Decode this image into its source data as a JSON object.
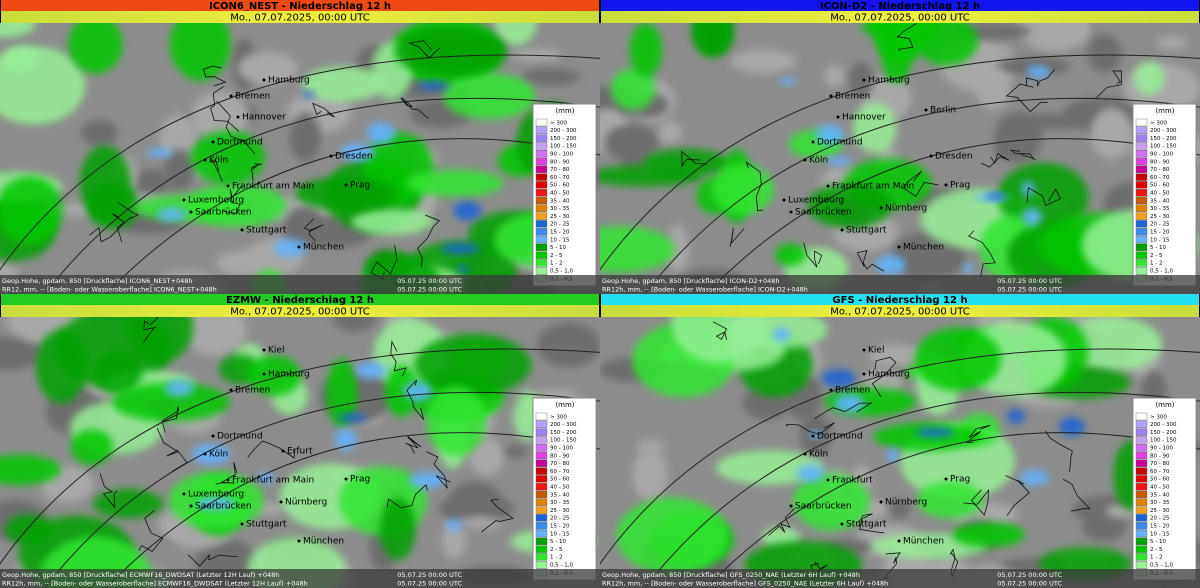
{
  "panels": [
    {
      "title": "ICON6_NEST - Niederschlag 12 h",
      "color": "#f04a14",
      "date": "Mo., 07.07.2025, 00:00 UTC",
      "cities": [
        "Hamburg",
        "Bremen",
        "Hannover",
        "Dortmund",
        "Köln",
        "Dresden",
        "Frankfurt am Main",
        "Prag",
        "Luxembourg",
        "Saarbrücken",
        "Stuttgart",
        "München"
      ],
      "footer": [
        [
          "Geop.Hohe, gpdam, 850 [Druckflache] ICON6_NEST+048h",
          "05.07.25 00:00 UTC"
        ],
        [
          "RR12, mm, -- [Boden- oder Wasseroberflache] ICON6_NEST+048h",
          "05.07.25 00:00 UTC"
        ]
      ]
    },
    {
      "title": "ICON-D2 - Niederschlag 12 h",
      "color": "#1414f0",
      "date": "Mo., 07.07.2025, 00:00 UTC",
      "cities": [
        "Hamburg",
        "Bremen",
        "Hannover",
        "Berlin",
        "Dortmund",
        "Köln",
        "Dresden",
        "Frankfurt am Main",
        "Prag",
        "Luxembourg",
        "Saarbrücken",
        "Nürnberg",
        "Stuttgart",
        "München"
      ],
      "footer": [
        [
          "Geop.Hohe, gpdam, 850 [Druckflache] ICON-D2+048h",
          "05.07.25 00:00 UTC"
        ],
        [
          "RR12h, mm, -- [Boden- oder Wasseroberflache] ICON-D2+048h",
          "05.07.25 00:00 UTC"
        ]
      ]
    },
    {
      "title": "EZMW - Niederschlag 12 h",
      "color": "#22cc22",
      "date": "Mo., 07.07.2025, 00:00 UTC",
      "cities": [
        "Kiel",
        "Hamburg",
        "Bremen",
        "Dortmund",
        "Köln",
        "Erfurt",
        "Frankfurt am Main",
        "Prag",
        "Luxembourg",
        "Saarbrücken",
        "Nürnberg",
        "Stuttgart",
        "München"
      ],
      "footer": [
        [
          "Geop.Hohe, gpdam, 850 [Druckflache] ECMWF16_DWDSAT (Letzter 12H Lauf) +048h",
          "05.07.25 00:00 UTC"
        ],
        [
          "RR12h, mm, -- [Boden- oder Wasseroberflache] ECMWF16_DWDSAT (Letzter 12H Lauf) +048h",
          "05.07.25 00:00 UTC"
        ]
      ]
    },
    {
      "title": "GFS - Niederschlag 12 h",
      "color": "#22e0f0",
      "date": "Mo., 07.07.2025, 00:00 UTC",
      "cities": [
        "Kiel",
        "Hamburg",
        "Bremen",
        "Dortmund",
        "Köln",
        "Frankfurt",
        "Prag",
        "Nürnberg",
        "Saarbrücken",
        "Stuttgart",
        "München"
      ],
      "footer": [
        [
          "Geop.Hohe, gpdam, 850 [Druckflache] GFS_0250_NAE (Letzter 6H Lauf) +048h",
          "05.07.25 00:00 UTC"
        ],
        [
          "RR12h, mm, -- [Boden- oder Wasseroberflache] GFS_0250_NAE (Letzter 6H Lauf) +048h",
          "05.07.25 00:00 UTC"
        ]
      ]
    }
  ],
  "legend": {
    "unit": "(mm)",
    "items": [
      {
        "label": "> 300",
        "color": "#ffffff"
      },
      {
        "label": "200 - 300",
        "color": "#b4a0ff"
      },
      {
        "label": "150 - 200",
        "color": "#a080f0"
      },
      {
        "label": "100 - 150",
        "color": "#c8a0f0"
      },
      {
        "label": "90 - 100",
        "color": "#d070f0"
      },
      {
        "label": "80 - 90",
        "color": "#e040e0"
      },
      {
        "label": "70 - 80",
        "color": "#c80096"
      },
      {
        "label": "60 - 70",
        "color": "#c80000"
      },
      {
        "label": "50 - 60",
        "color": "#e00000"
      },
      {
        "label": "40 - 50",
        "color": "#f01414"
      },
      {
        "label": "35 - 40",
        "color": "#c85a00"
      },
      {
        "label": "30 - 35",
        "color": "#e08200"
      },
      {
        "label": "25 - 30",
        "color": "#f0a01e"
      },
      {
        "label": "20 - 25",
        "color": "#1e64d2"
      },
      {
        "label": "15 - 20",
        "color": "#3c8cf0"
      },
      {
        "label": "10 - 15",
        "color": "#64b4ff"
      },
      {
        "label": "5 - 10",
        "color": "#00a000"
      },
      {
        "label": "2 - 5",
        "color": "#00c800"
      },
      {
        "label": "1 - 2",
        "color": "#32e632"
      },
      {
        "label": "0,5 - 1,0",
        "color": "#96f096"
      },
      {
        "label": "0,1 - 0,5",
        "color": "#d2fad2"
      }
    ]
  }
}
